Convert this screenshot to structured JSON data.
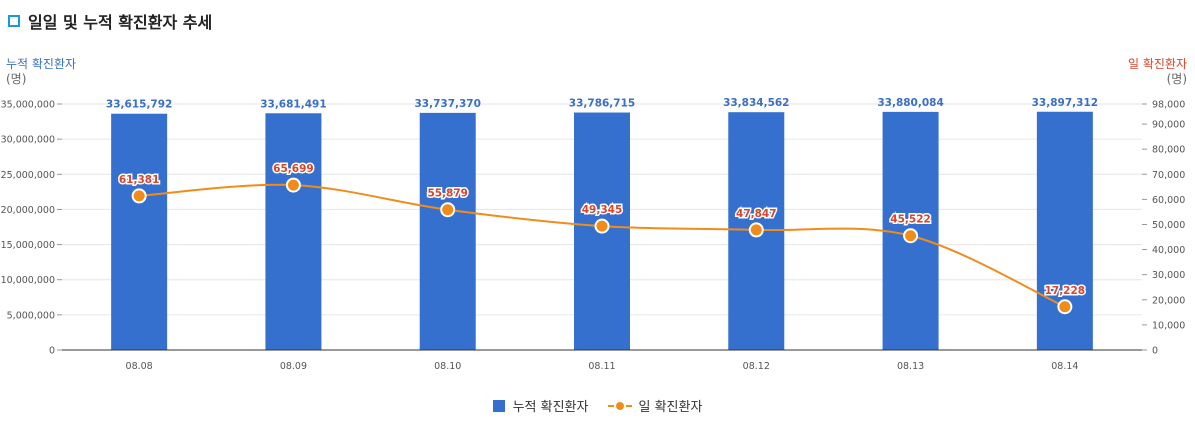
{
  "header": {
    "title": "일일 및 누적 확진환자 추세"
  },
  "axes": {
    "left": {
      "title": "누적 확진환자",
      "unit": "(명)"
    },
    "right": {
      "title": "일 확진환자",
      "unit": "(명)"
    }
  },
  "legend": {
    "cumulative": "누적 확진환자",
    "daily": "일 확진환자"
  },
  "colors": {
    "bar": "#3570cf",
    "bar_label": "#3a6fc4",
    "line": "#f08c1a",
    "line_label": "#d9452b",
    "grid": "#e6e6e6",
    "tick": "#555555"
  },
  "chart_data": {
    "type": "bar+line",
    "categories": [
      "08.08",
      "08.09",
      "08.10",
      "08.11",
      "08.12",
      "08.13",
      "08.14"
    ],
    "series": [
      {
        "name": "누적 확진환자",
        "type": "bar",
        "axis": "left",
        "values": [
          33615792,
          33681491,
          33737370,
          33786715,
          33834562,
          33880084,
          33897312
        ],
        "labels": [
          "33,615,792",
          "33,681,491",
          "33,737,370",
          "33,786,715",
          "33,834,562",
          "33,880,084",
          "33,897,312"
        ]
      },
      {
        "name": "일 확진환자",
        "type": "line",
        "axis": "right",
        "values": [
          61381,
          65699,
          55879,
          49345,
          47847,
          45522,
          17228
        ],
        "labels": [
          "61,381",
          "65,699",
          "55,879",
          "49,345",
          "47,847",
          "45,522",
          "17,228"
        ]
      }
    ],
    "y_left": {
      "range": [
        0,
        35000000
      ],
      "ticks": [
        0,
        5000000,
        10000000,
        15000000,
        20000000,
        25000000,
        30000000,
        35000000
      ],
      "tick_labels": [
        "0",
        "5,000,000",
        "10,000,000",
        "15,000,000",
        "20,000,000",
        "25,000,000",
        "30,000,000",
        "35,000,000"
      ]
    },
    "y_right": {
      "range": [
        0,
        98000
      ],
      "ticks": [
        0,
        10000,
        20000,
        30000,
        40000,
        50000,
        60000,
        70000,
        80000,
        90000,
        98000
      ],
      "tick_labels": [
        "0",
        "10,000",
        "20,000",
        "30,000",
        "40,000",
        "50,000",
        "60,000",
        "70,000",
        "80,000",
        "90,000",
        "98,000"
      ]
    },
    "grid": true,
    "legend_position": "bottom"
  }
}
